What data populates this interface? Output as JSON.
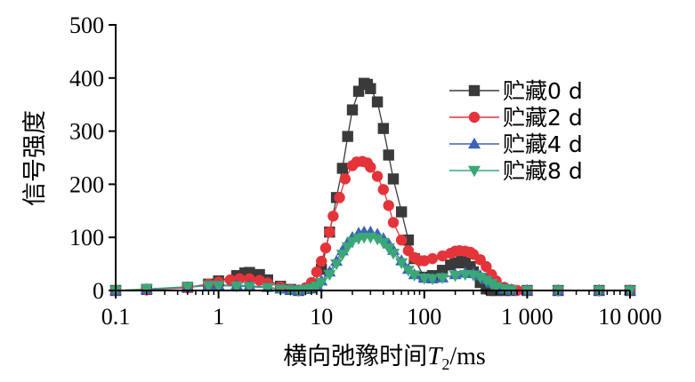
{
  "chart_data": {
    "type": "line",
    "title": "",
    "xlabel": "横向弛豫时间T2/ms",
    "xlabel_parts": {
      "prefix": "横向弛豫时间",
      "var": "T",
      "sub": "2",
      "suffix": "/ms"
    },
    "ylabel": "信号强度",
    "xscale": "log",
    "xlim": [
      0.1,
      10000
    ],
    "ylim": [
      0,
      500
    ],
    "xticks": [
      0.1,
      1,
      10,
      100,
      1000,
      10000
    ],
    "xtick_labels": [
      "0.1",
      "1",
      "10",
      "100",
      "1 000",
      "10 000"
    ],
    "yticks": [
      0,
      100,
      200,
      300,
      400,
      500
    ],
    "ytick_labels": [
      "0",
      "100",
      "200",
      "300",
      "400",
      "500"
    ],
    "legend_position": "top-right",
    "grid": false,
    "series": [
      {
        "name": "贮藏0 d",
        "color": "#3a3a3a",
        "marker": "square",
        "x": [
          0.1,
          0.2,
          0.5,
          0.8,
          1.0,
          1.5,
          1.8,
          2.0,
          2.5,
          3.0,
          4.0,
          5.0,
          6.0,
          8.0,
          10,
          12,
          14,
          16,
          18,
          20,
          23,
          26,
          28,
          30,
          35,
          40,
          45,
          50,
          60,
          70,
          80,
          100,
          120,
          150,
          180,
          200,
          230,
          250,
          280,
          300,
          350,
          400,
          450,
          500,
          600,
          700,
          1000,
          2000,
          5000,
          10000
        ],
        "y": [
          0,
          2,
          6,
          12,
          18,
          28,
          33,
          34,
          30,
          20,
          8,
          2,
          0,
          5,
          40,
          110,
          175,
          230,
          290,
          340,
          375,
          390,
          388,
          380,
          355,
          305,
          255,
          210,
          148,
          95,
          60,
          25,
          28,
          38,
          48,
          52,
          55,
          52,
          45,
          35,
          15,
          3,
          0,
          0,
          0,
          0,
          0,
          0,
          0,
          0
        ]
      },
      {
        "name": "贮藏2 d",
        "color": "#e4343a",
        "marker": "circle",
        "x": [
          0.1,
          0.2,
          0.5,
          0.8,
          1.0,
          1.3,
          1.6,
          2.0,
          2.5,
          3.0,
          4.0,
          5.0,
          6.0,
          7.0,
          8.0,
          9.0,
          10,
          11,
          12,
          13,
          15,
          17,
          20,
          22,
          25,
          28,
          30,
          35,
          40,
          45,
          50,
          60,
          70,
          80,
          90,
          100,
          120,
          150,
          180,
          200,
          220,
          250,
          280,
          300,
          350,
          400,
          450,
          500,
          600,
          700,
          800,
          1000,
          2000,
          5000,
          10000
        ],
        "y": [
          0,
          1,
          5,
          12,
          16,
          20,
          22,
          22,
          19,
          14,
          7,
          2,
          0,
          5,
          15,
          35,
          55,
          80,
          110,
          140,
          175,
          210,
          235,
          242,
          243,
          240,
          232,
          215,
          190,
          160,
          128,
          95,
          75,
          62,
          56,
          56,
          60,
          65,
          70,
          74,
          75,
          74,
          72,
          68,
          58,
          45,
          30,
          18,
          6,
          2,
          0,
          0,
          0,
          0,
          0
        ]
      },
      {
        "name": "贮藏4 d",
        "color": "#3b64b8",
        "marker": "triangle-up",
        "x": [
          0.1,
          0.2,
          0.5,
          0.8,
          1.0,
          1.5,
          2.0,
          3.0,
          4.0,
          5.0,
          6.0,
          7.0,
          8.0,
          9.0,
          10,
          12,
          14,
          16,
          18,
          20,
          23,
          26,
          30,
          35,
          40,
          45,
          50,
          60,
          70,
          80,
          100,
          120,
          150,
          200,
          250,
          300,
          350,
          400,
          450,
          500,
          600,
          700,
          1000,
          2000,
          5000,
          10000
        ],
        "y": [
          0,
          2,
          6,
          9,
          10,
          10,
          9,
          6,
          3,
          1,
          0,
          2,
          5,
          10,
          18,
          35,
          55,
          75,
          90,
          100,
          108,
          110,
          110,
          106,
          98,
          88,
          76,
          56,
          40,
          30,
          24,
          22,
          24,
          30,
          33,
          32,
          28,
          21,
          14,
          8,
          3,
          1,
          0,
          0,
          0,
          0
        ]
      },
      {
        "name": "贮藏8 d",
        "color": "#3aa876",
        "marker": "triangle-down",
        "x": [
          0.1,
          0.2,
          0.5,
          0.8,
          1.0,
          1.5,
          2.0,
          3.0,
          4.0,
          5.0,
          6.0,
          7.0,
          8.0,
          9.0,
          10,
          12,
          14,
          16,
          18,
          20,
          23,
          26,
          30,
          35,
          40,
          45,
          50,
          60,
          70,
          80,
          100,
          120,
          150,
          200,
          250,
          300,
          350,
          400,
          450,
          500,
          600,
          700,
          1000,
          2000,
          5000,
          10000
        ],
        "y": [
          0,
          3,
          7,
          9,
          9,
          8,
          7,
          5,
          2,
          1,
          0,
          2,
          4,
          8,
          15,
          30,
          50,
          68,
          82,
          92,
          98,
          100,
          100,
          97,
          90,
          80,
          70,
          52,
          38,
          29,
          23,
          22,
          24,
          28,
          30,
          29,
          25,
          19,
          13,
          7,
          3,
          1,
          0,
          0,
          0,
          0
        ]
      }
    ]
  }
}
